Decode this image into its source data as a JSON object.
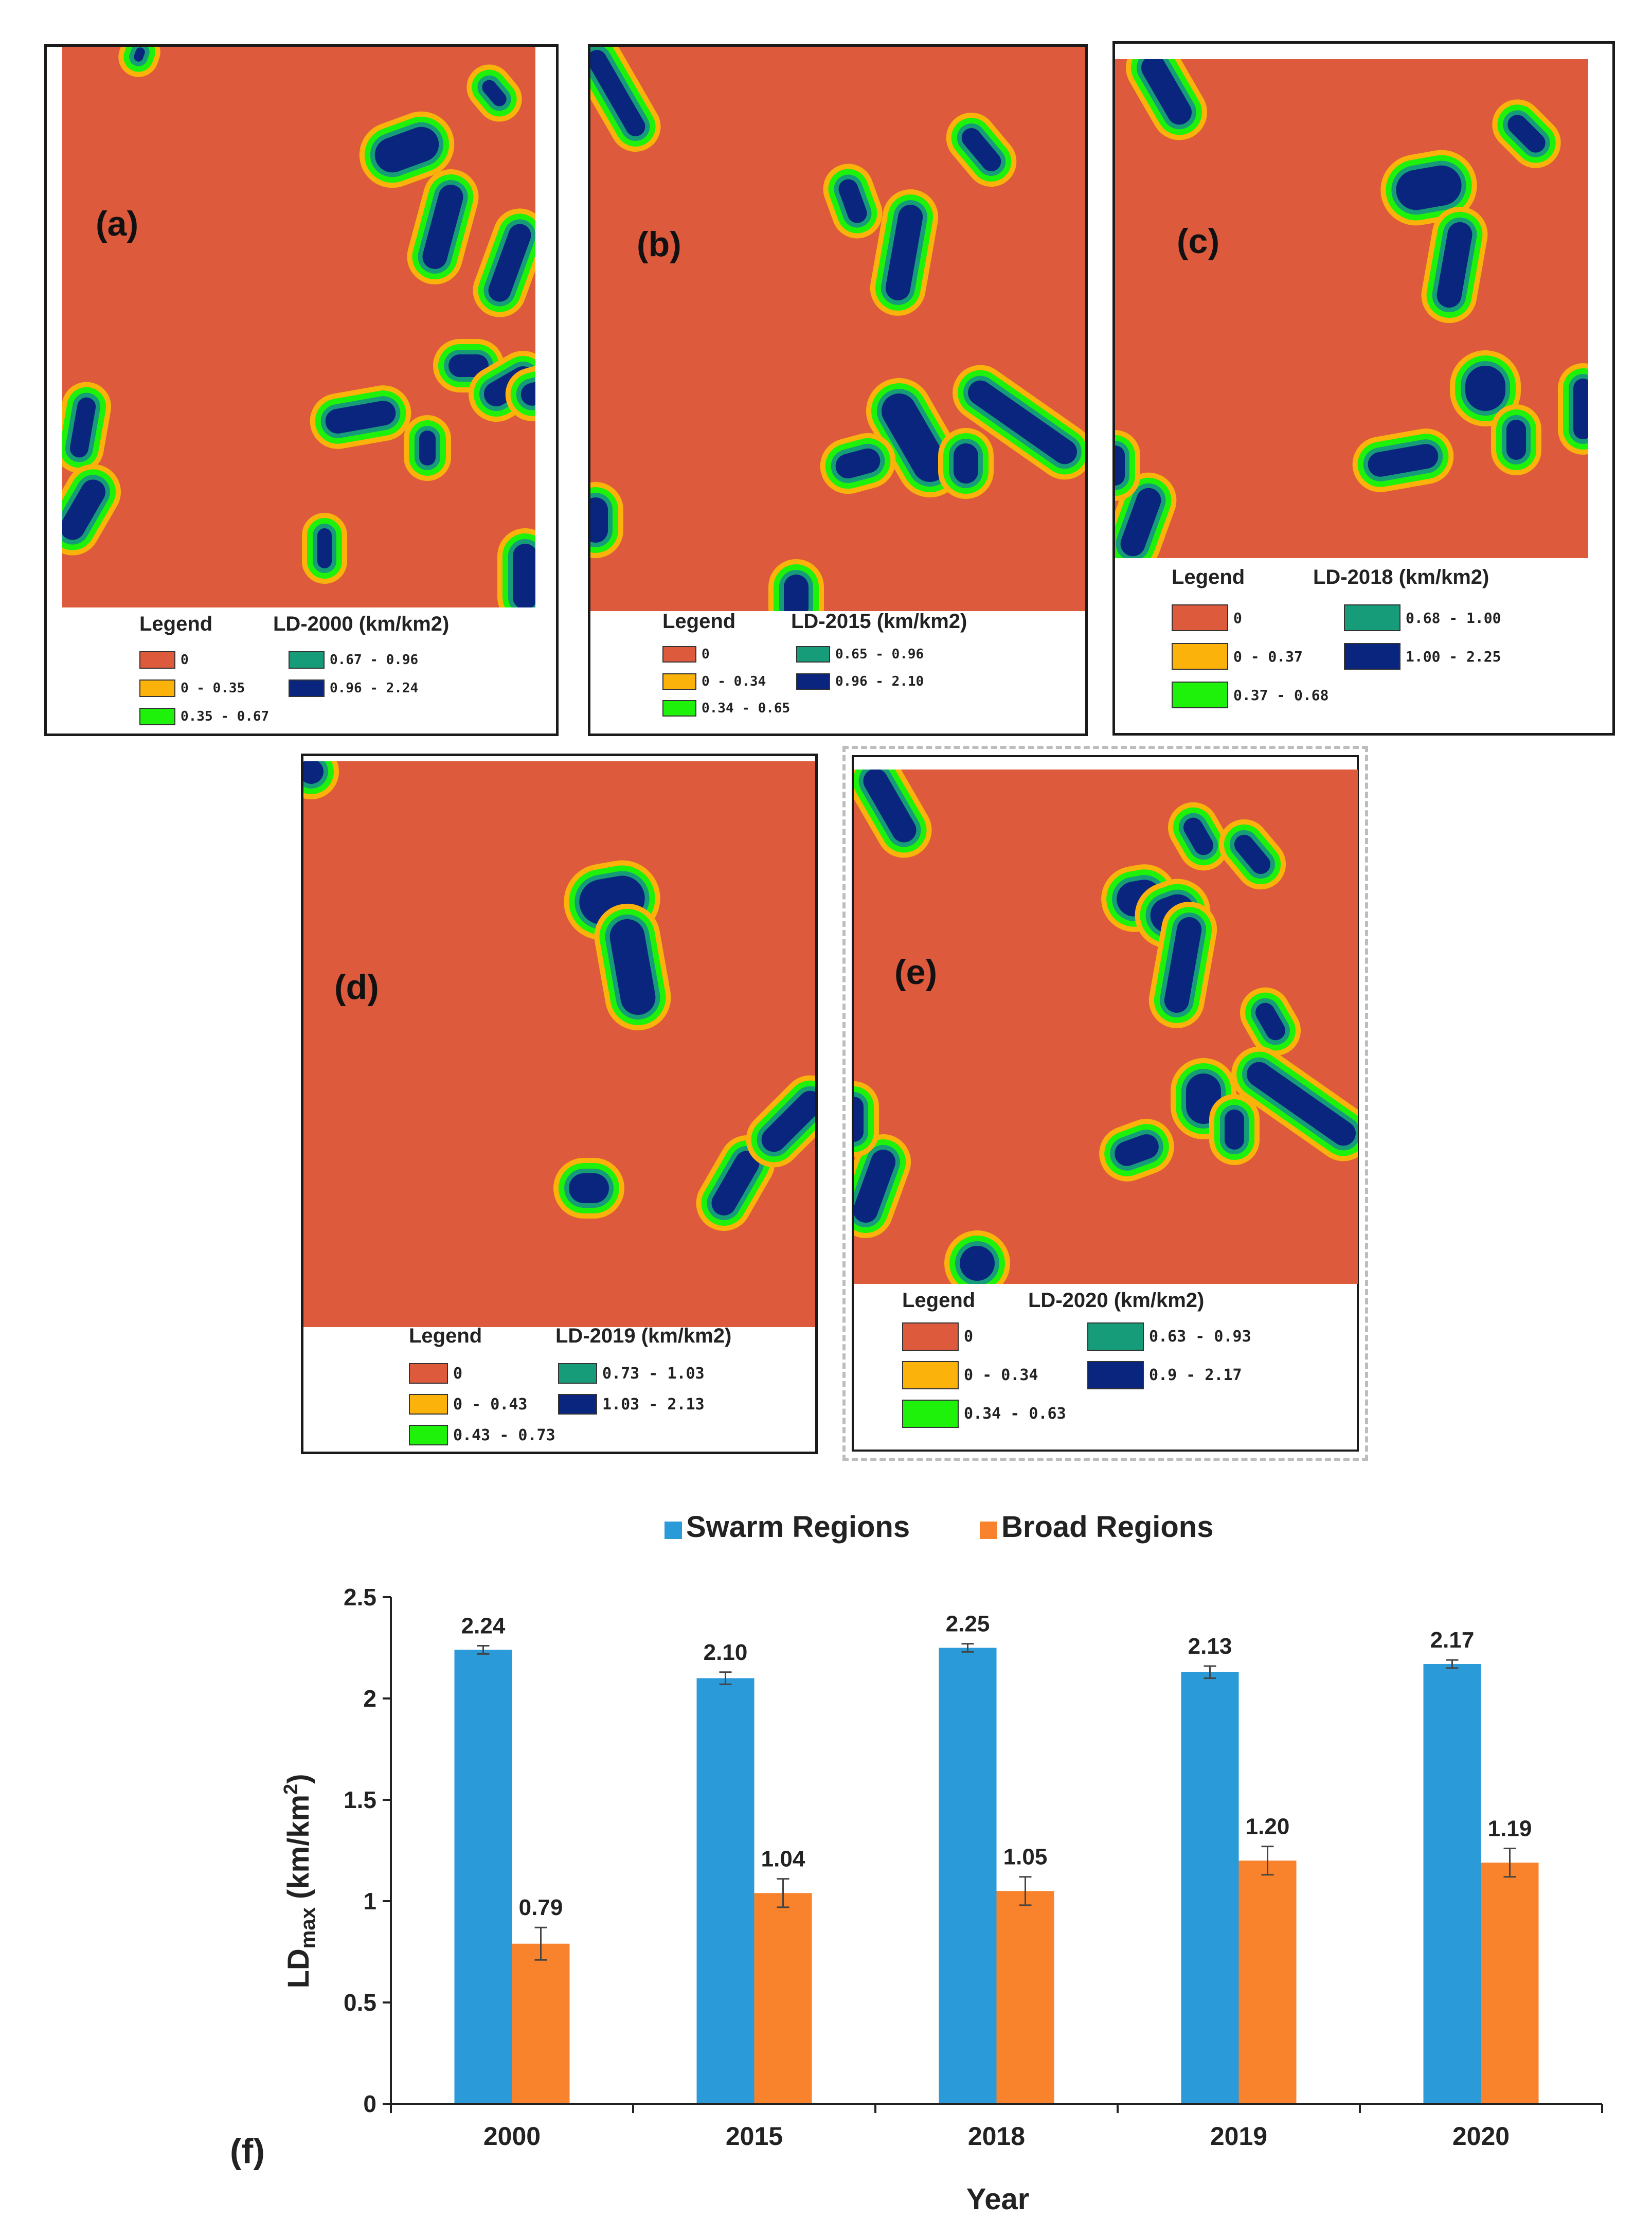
{
  "colors": {
    "zero": "#dd5a3c",
    "low": "#fbb20b",
    "mid": "#1ef20a",
    "high": "#169c78",
    "top": "#09257d",
    "swarm": "#2a9ad8",
    "broad": "#f9822c"
  },
  "maps": [
    {
      "label": "(a)",
      "legend_title": "Legend",
      "legend_unit": "LD-2000 (km/km2)",
      "classes": [
        "0",
        "0 - 0.35",
        "0.35 - 0.67",
        "0.67 - 0.96",
        "0.96 - 2.24"
      ]
    },
    {
      "label": "(b)",
      "legend_title": "Legend",
      "legend_unit": "LD-2015 (km/km2)",
      "classes": [
        "0",
        "0 - 0.34",
        "0.34 - 0.65",
        "0.65 - 0.96",
        "0.96 - 2.10"
      ]
    },
    {
      "label": "(c)",
      "legend_title": "Legend",
      "legend_unit": "LD-2018 (km/km2)",
      "classes": [
        "0",
        "0 - 0.37",
        "0.37 - 0.68",
        "0.68 - 1.00",
        "1.00 - 2.25"
      ]
    },
    {
      "label": "(d)",
      "legend_title": "Legend",
      "legend_unit": "LD-2019 (km/km2)",
      "classes": [
        "0",
        "0 - 0.43",
        "0.43 - 0.73",
        "0.73 - 1.03",
        "1.03 - 2.13"
      ]
    },
    {
      "label": "(e)",
      "legend_title": "Legend",
      "legend_unit": "LD-2020 (km/km2)",
      "classes": [
        "0",
        "0 - 0.34",
        "0.34 - 0.63",
        "0.63 - 0.93",
        "0.9 - 2.17"
      ]
    }
  ],
  "chart_data": {
    "type": "bar",
    "panel_label": "(f)",
    "categories": [
      "2000",
      "2015",
      "2018",
      "2019",
      "2020"
    ],
    "series": [
      {
        "name": "Swarm Regions",
        "values": [
          2.24,
          2.1,
          2.25,
          2.13,
          2.17
        ],
        "labels": [
          "2.24",
          "2.10",
          "2.25",
          "2.13",
          "2.17"
        ],
        "errors": [
          0.02,
          0.03,
          0.02,
          0.03,
          0.02
        ]
      },
      {
        "name": "Broad Regions",
        "values": [
          0.79,
          1.04,
          1.05,
          1.2,
          1.19
        ],
        "labels": [
          "0.79",
          "1.04",
          "1.05",
          "1.20",
          "1.19"
        ],
        "errors": [
          0.08,
          0.07,
          0.07,
          0.07,
          0.07
        ]
      }
    ],
    "xlabel": "Year",
    "ylabel_main": "LD",
    "ylabel_sub": "max",
    "ylabel_unit": " (km/km",
    "ylabel_sup": "2",
    "ylabel_end": ")",
    "ylim": [
      0,
      2.5
    ],
    "yticks": [
      0,
      0.5,
      1,
      1.5,
      2,
      2.5
    ],
    "ytick_labels": [
      "0",
      "0.5",
      "1",
      "1.5",
      "2",
      "2.5"
    ],
    "legend_position": "top-center"
  }
}
